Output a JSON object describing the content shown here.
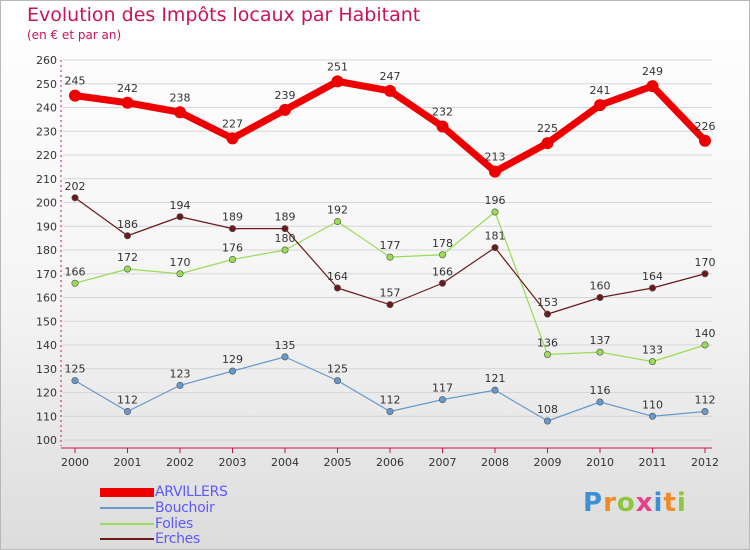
{
  "header": {
    "title": "Evolution des Impôts locaux par Habitant",
    "subtitle": "(en € et par an)"
  },
  "colors": {
    "title": "#c8145a",
    "legend_text": "#5a5aff",
    "axis": "#c8145a"
  },
  "chart_data": {
    "type": "line",
    "title": "Evolution des Impôts locaux par Habitant",
    "subtitle": "(en € et par an)",
    "xlabel": "",
    "ylabel": "",
    "x": [
      "2000",
      "2001",
      "2002",
      "2003",
      "2004",
      "2005",
      "2006",
      "2007",
      "2008",
      "2009",
      "2010",
      "2011",
      "2012"
    ],
    "ylim": [
      100,
      260
    ],
    "yticks": [
      100,
      110,
      120,
      130,
      140,
      150,
      160,
      170,
      180,
      190,
      200,
      210,
      220,
      230,
      240,
      250,
      260
    ],
    "grid": true,
    "legend_position": "bottom-left",
    "series": [
      {
        "name": "ARVILLERS",
        "color": "#ee0000",
        "values": [
          245,
          242,
          238,
          227,
          239,
          251,
          247,
          232,
          213,
          225,
          241,
          249,
          226
        ]
      },
      {
        "name": "Bouchoir",
        "color": "#6699cc",
        "values": [
          125,
          112,
          123,
          129,
          135,
          125,
          112,
          117,
          121,
          108,
          116,
          110,
          112
        ]
      },
      {
        "name": "Folies",
        "color": "#99dd55",
        "values": [
          166,
          172,
          170,
          176,
          180,
          192,
          177,
          178,
          196,
          136,
          137,
          133,
          140
        ]
      },
      {
        "name": "Erches",
        "color": "#6b1a1a",
        "values": [
          202,
          186,
          194,
          189,
          189,
          164,
          157,
          166,
          181,
          153,
          160,
          164,
          170
        ]
      }
    ]
  },
  "legend": [
    {
      "label": "ARVILLERS",
      "color": "#ee0000"
    },
    {
      "label": "Bouchoir",
      "color": "#6699cc"
    },
    {
      "label": "Folies",
      "color": "#99dd55"
    },
    {
      "label": "Erches",
      "color": "#6b1a1a"
    }
  ],
  "logo": {
    "text": "Proxiti",
    "letter_colors": [
      "#3d8fd6",
      "#f08a24",
      "#8dc63f",
      "#e83e8c",
      "#3d8fd6",
      "#f08a24",
      "#8dc63f"
    ]
  }
}
